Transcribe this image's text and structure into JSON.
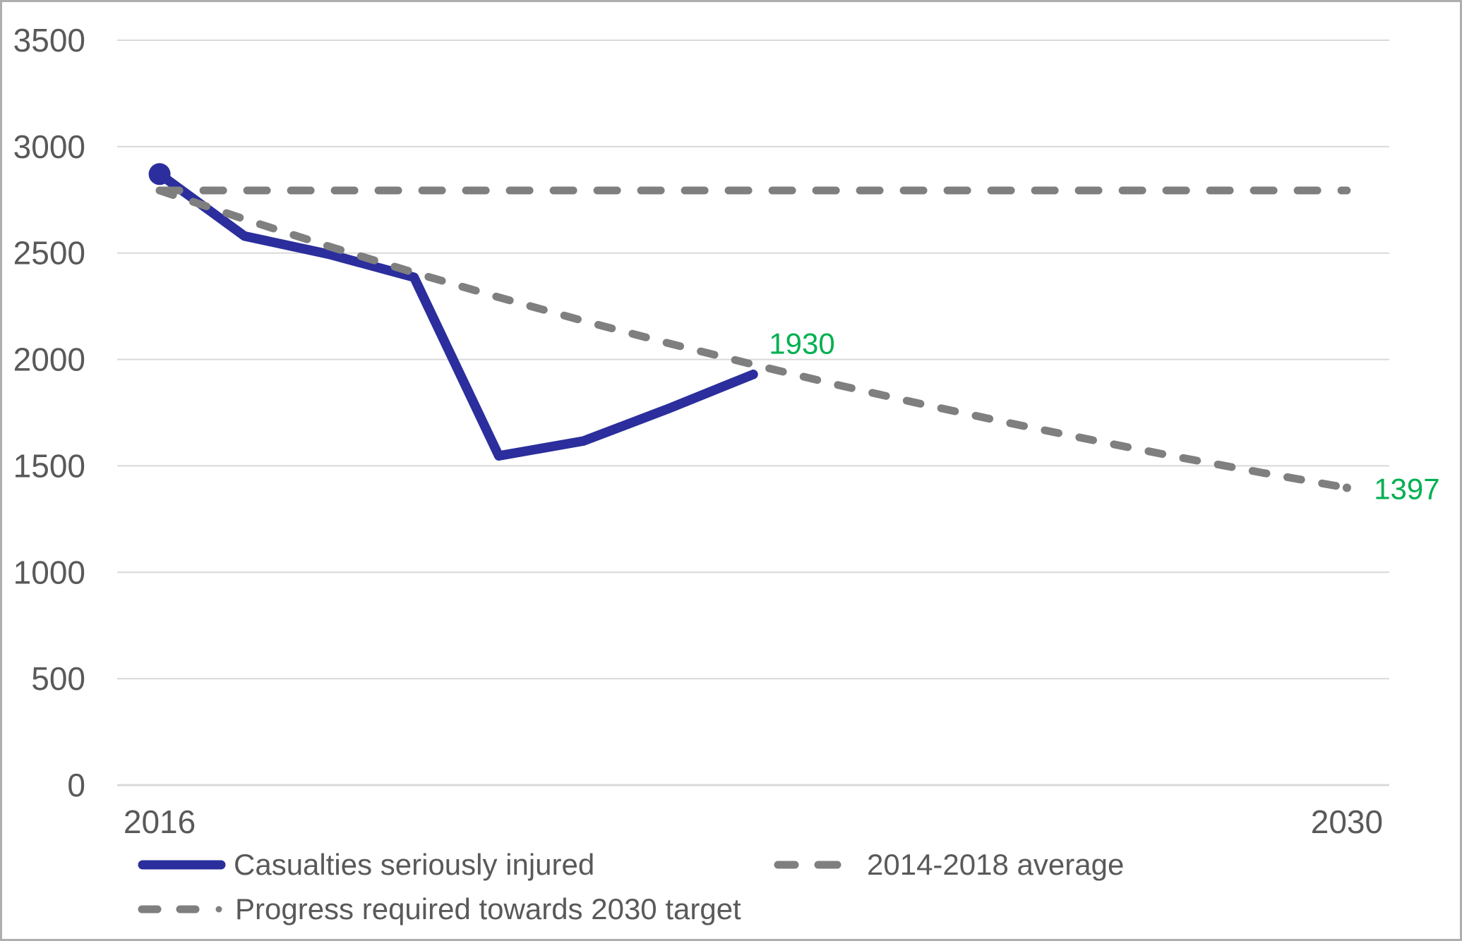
{
  "chart_data": {
    "type": "line",
    "title": "",
    "x_axis": {
      "range_years": [
        2016,
        2030
      ],
      "labels": [
        {
          "year": 2016,
          "text": "2016"
        },
        {
          "year": 2030,
          "text": "2030"
        }
      ]
    },
    "y_axis": {
      "min": 0,
      "max": 3500,
      "step": 500,
      "tick_labels": [
        "0",
        "500",
        "1000",
        "1500",
        "2000",
        "2500",
        "3000",
        "3500"
      ],
      "grid": true
    },
    "series": [
      {
        "name": "Casualties seriously injured",
        "style": "solid",
        "color": "#2B2E9C",
        "years": [
          2016,
          2017,
          2018,
          2019,
          2020,
          2021,
          2022,
          2023
        ],
        "values": [
          2871,
          2580,
          2494,
          2386,
          1547,
          1617,
          1769,
          1930
        ],
        "marker": "first-point-dot"
      },
      {
        "name": "2014-2018 average",
        "style": "long-dash",
        "color": "#7F7F7F",
        "years": [
          2016,
          2030
        ],
        "values": [
          2794,
          2794
        ],
        "marker": "none"
      },
      {
        "name": "Progress required towards 2030 target",
        "style": "dash",
        "color": "#7F7F7F",
        "years": [
          2016,
          2017,
          2018,
          2019,
          2020,
          2021,
          2022,
          2023,
          2024,
          2025,
          2026,
          2027,
          2028,
          2029,
          2030
        ],
        "values": [
          2794,
          2659,
          2531,
          2408,
          2292,
          2181,
          2076,
          1976,
          1880,
          1789,
          1703,
          1621,
          1542,
          1468,
          1397
        ],
        "marker": "last-point-dot"
      }
    ],
    "annotations": [
      {
        "text": "1930",
        "year": 2023,
        "value": 1930,
        "color": "#00B050"
      },
      {
        "text": "1397",
        "year": 2030,
        "value": 1397,
        "color": "#00B050"
      }
    ],
    "legend_position": "bottom"
  },
  "legend": {
    "items": [
      {
        "label": "Casualties seriously injured"
      },
      {
        "label": "2014-2018 average"
      },
      {
        "label": "Progress required towards 2030 target"
      }
    ]
  },
  "colors": {
    "series_blue": "#2B2E9C",
    "series_gray": "#7F7F7F",
    "annotation_green": "#00B050",
    "axis_text": "#595959",
    "gridline": "#D9D9D9",
    "frame_border": "#AEAEAE",
    "background": "#FFFFFF"
  }
}
